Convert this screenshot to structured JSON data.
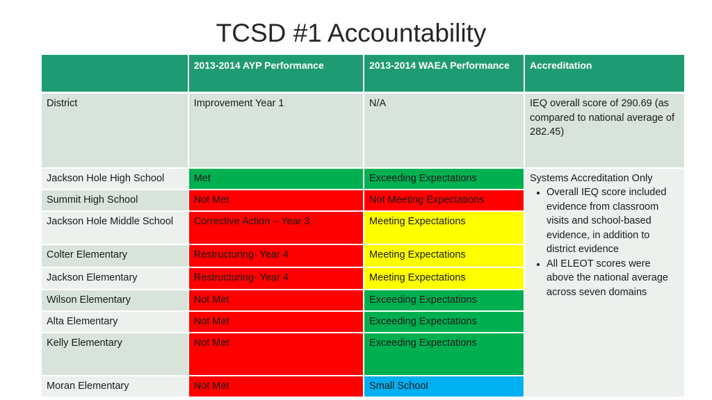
{
  "title": "TCSD #1 Accountability",
  "headers": [
    "",
    "2013-2014 AYP Performance",
    "2013-2014 WAEA Performance",
    "Accreditation"
  ],
  "district": {
    "name": "District",
    "ayp": "Improvement Year 1",
    "waea": "N/A",
    "accreditation": "IEQ overall score of 290.69 (as compared to national average of 282.45)"
  },
  "schools": [
    {
      "name": "Jackson Hole High School",
      "ayp": "Met",
      "ayp_color": "green",
      "waea": "Exceeding Expectations",
      "waea_color": "green"
    },
    {
      "name": "Summit High School",
      "ayp": "Not Met",
      "ayp_color": "red",
      "waea": "Not Meeting Expectations",
      "waea_color": "red"
    },
    {
      "name": "Jackson Hole Middle School",
      "ayp": "Corrective Action – Year 3",
      "ayp_color": "red",
      "waea": "Meeting Expectations",
      "waea_color": "yellow"
    },
    {
      "name": "Colter Elementary",
      "ayp": "Restructuring- Year 4",
      "ayp_color": "red",
      "waea": "Meeting Expectations",
      "waea_color": "yellow"
    },
    {
      "name": "Jackson Elementary",
      "ayp": "Restructuring- Year 4",
      "ayp_color": "red",
      "waea": "Meeting Expectations",
      "waea_color": "yellow"
    },
    {
      "name": "Wilson Elementary",
      "ayp": "Not Met",
      "ayp_color": "red",
      "waea": "Exceeding Expectations",
      "waea_color": "green"
    },
    {
      "name": "Alta Elementary",
      "ayp": "Not Met",
      "ayp_color": "red",
      "waea": "Exceeding Expectations",
      "waea_color": "green"
    },
    {
      "name": "Kelly Elementary",
      "ayp": "Not Met",
      "ayp_color": "red",
      "waea": "Exceeding Expectations",
      "waea_color": "green"
    },
    {
      "name": "Moran Elementary",
      "ayp": "Not Met",
      "ayp_color": "red",
      "waea": "Small School",
      "waea_color": "blue"
    }
  ],
  "schools_accreditation": {
    "heading": "Systems Accreditation Only",
    "bullets": [
      "Overall IEQ score included evidence from classroom visits and school-based evidence, in addition to district evidence",
      "All ELEOT scores were above the national average across seven domains"
    ]
  },
  "colors": {
    "header": "#1f9b73",
    "green": "#00b050",
    "red": "#ff0000",
    "yellow": "#ffff00",
    "blue": "#00b0f0"
  }
}
